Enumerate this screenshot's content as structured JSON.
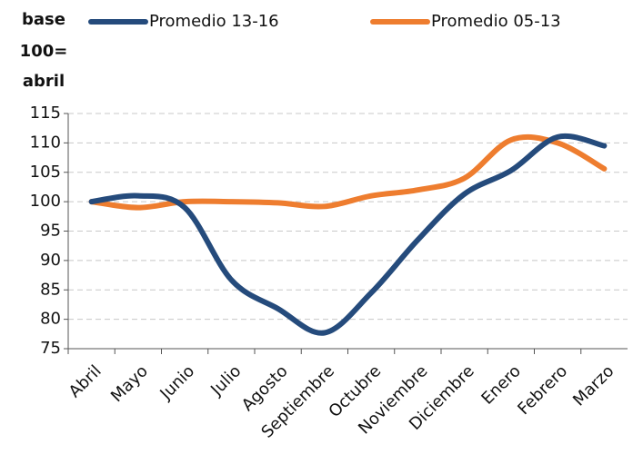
{
  "chart_data": {
    "type": "line",
    "y_label": [
      "base",
      "100=",
      "abril"
    ],
    "categories": [
      "Abril",
      "Mayo",
      "Junio",
      "Julio",
      "Agosto",
      "Septiembre",
      "Octubre",
      "Noviembre",
      "Diciembre",
      "Enero",
      "Febrero",
      "Marzo"
    ],
    "series": [
      {
        "name": "Promedio 13-16",
        "color": "#254b7c",
        "values": [
          100,
          101,
          99,
          86.7,
          81.8,
          77.7,
          84.5,
          93.5,
          101.3,
          105.3,
          111,
          109.5
        ]
      },
      {
        "name": "Promedio 05-13",
        "color": "#ee7d2f",
        "values": [
          100,
          99,
          100,
          100,
          99.8,
          99.2,
          101,
          102,
          104,
          110.5,
          110,
          105.6
        ]
      }
    ],
    "ylim": [
      75,
      115
    ],
    "yticks": [
      75,
      80,
      85,
      90,
      95,
      100,
      105,
      110,
      115
    ],
    "grid": true
  }
}
